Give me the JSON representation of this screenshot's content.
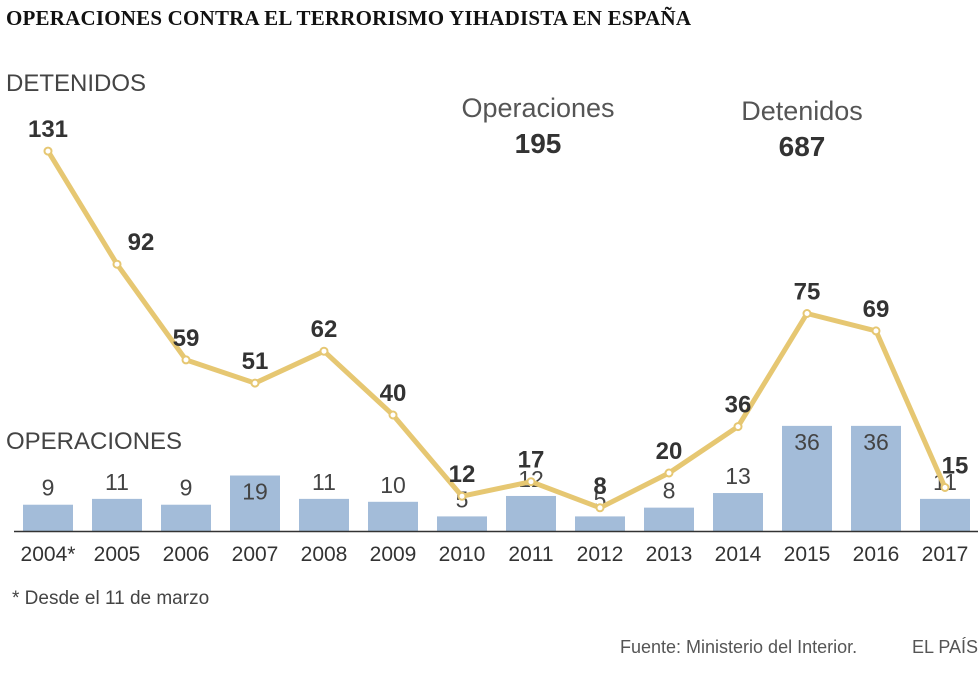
{
  "title": "OPERACIONES CONTRA EL TERRORISMO YIHADISTA EN ESPAÑA",
  "labels": {
    "detenidos_heading": "DETENIDOS",
    "operaciones_heading": "OPERACIONES"
  },
  "summary": {
    "operaciones_label": "Operaciones",
    "operaciones_total": "195",
    "detenidos_label": "Detenidos",
    "detenidos_total": "687"
  },
  "footnote": "* Desde el 11 de marzo",
  "source": "Fuente: Ministerio del Interior.",
  "brand": "EL PAÍS",
  "colors": {
    "bar": "#a3bcd9",
    "line": "#e6c772",
    "axis": "#333333"
  },
  "chart_data": {
    "type": "bar+line",
    "categories": [
      "2004*",
      "2005",
      "2006",
      "2007",
      "2008",
      "2009",
      "2010",
      "2011",
      "2012",
      "2013",
      "2014",
      "2015",
      "2016",
      "2017"
    ],
    "series": [
      {
        "name": "Operaciones",
        "type": "bar",
        "values": [
          9,
          11,
          9,
          19,
          11,
          10,
          5,
          12,
          5,
          8,
          13,
          36,
          36,
          11
        ]
      },
      {
        "name": "Detenidos",
        "type": "line",
        "values": [
          131,
          92,
          59,
          51,
          62,
          40,
          12,
          17,
          8,
          20,
          36,
          75,
          69,
          15
        ]
      }
    ]
  }
}
